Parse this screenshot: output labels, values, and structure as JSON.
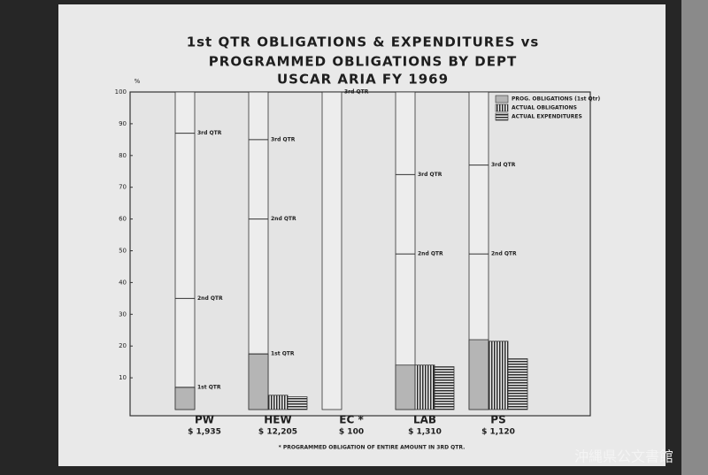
{
  "chart_data": {
    "type": "bar",
    "title": [
      "1st QTR OBLIGATIONS & EXPENDITURES vs",
      "PROGRAMMED OBLIGATIONS BY DEPT",
      "USCAR ARIA FY 1969"
    ],
    "y_unit": "%",
    "categories": [
      "PW",
      "HEW",
      "EC *",
      "LAB",
      "PS"
    ],
    "amounts": [
      "$ 1,935",
      "$ 12,205",
      "$ 100",
      "$ 1,310",
      "$ 1,120"
    ],
    "series": [
      {
        "name": "PROG. OBLIGATIONS (1st Qtr)",
        "color": "#b5b5b5",
        "pattern": "solid",
        "values": [
          7,
          17.5,
          0,
          14,
          22
        ]
      },
      {
        "name": "ACTUAL OBLIGATIONS",
        "color": "#2a2a2a",
        "pattern": "vertical",
        "values": [
          0,
          4.5,
          0,
          14,
          21.5
        ]
      },
      {
        "name": "ACTUAL EXPENDITURES",
        "color": "#2a2a2a",
        "pattern": "horizontal",
        "values": [
          0,
          4,
          0,
          13.5,
          16
        ]
      }
    ],
    "quarter_marks": [
      [
        {
          "label": "1st QTR",
          "value": 7
        },
        {
          "label": "2nd QTR",
          "value": 35
        },
        {
          "label": "3rd QTR",
          "value": 87
        }
      ],
      [
        {
          "label": "1st QTR",
          "value": 17.5
        },
        {
          "label": "2nd QTR",
          "value": 60
        },
        {
          "label": "3rd QTR",
          "value": 85
        }
      ],
      [
        {
          "label": "3rd QTR",
          "value": 100
        }
      ],
      [
        {
          "label": "2nd QTR",
          "value": 49
        },
        {
          "label": "3rd QTR",
          "value": 74
        }
      ],
      [
        {
          "label": "2nd QTR",
          "value": 49
        },
        {
          "label": "3rd QTR",
          "value": 77
        }
      ]
    ],
    "ylim": [
      0,
      100
    ],
    "yticks": [
      10,
      20,
      30,
      40,
      50,
      60,
      70,
      80,
      90,
      100
    ],
    "legend": "top-right",
    "footnote": "* PROGRAMMED OBLIGATION OF ENTIRE AMOUNT IN 3RD QTR.",
    "watermark": "沖縄県公文書館"
  }
}
